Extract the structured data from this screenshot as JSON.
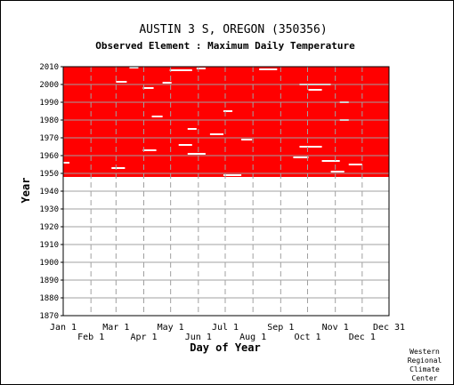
{
  "chart_data": {
    "type": "heatmap",
    "title": "AUSTIN 3 S, OREGON   (350356)",
    "subtitle": "Observed Element : Maximum Daily Temperature",
    "xlabel": "Day of Year",
    "ylabel": "Year",
    "x_tick_labels_top_row": [
      "Jan 1",
      "Mar 1",
      "May 1",
      "Jul 1",
      "Sep 1",
      "Nov 1",
      "Dec 31"
    ],
    "x_tick_labels_bottom_row": [
      "Feb 1",
      "Apr 1",
      "Jun 1",
      "Aug 1",
      "Oct 1",
      "Dec 1"
    ],
    "x_tick_days_top_row": [
      1,
      60,
      121,
      182,
      244,
      305,
      365
    ],
    "x_tick_days_bottom_row": [
      32,
      91,
      152,
      213,
      274,
      335
    ],
    "y_ticks": [
      1870,
      1880,
      1890,
      1900,
      1910,
      1920,
      1930,
      1940,
      1950,
      1960,
      1970,
      1980,
      1990,
      2000,
      2010
    ],
    "xlim": [
      1,
      365
    ],
    "ylim": [
      1870,
      2010
    ],
    "data_coverage": {
      "start_year": 1948,
      "end_year": 2010,
      "color": "#ff0000"
    },
    "missing_data_gaps": [
      {
        "year": 2009.5,
        "day_start": 75,
        "day_end": 85
      },
      {
        "year": 2008,
        "day_start": 120,
        "day_end": 145
      },
      {
        "year": 2009,
        "day_start": 150,
        "day_end": 160
      },
      {
        "year": 2008.5,
        "day_start": 220,
        "day_end": 240
      },
      {
        "year": 2001.5,
        "day_start": 60,
        "day_end": 72
      },
      {
        "year": 1998,
        "day_start": 90,
        "day_end": 102
      },
      {
        "year": 2001,
        "day_start": 112,
        "day_end": 122
      },
      {
        "year": 2000,
        "day_start": 265,
        "day_end": 300
      },
      {
        "year": 1997,
        "day_start": 275,
        "day_end": 290
      },
      {
        "year": 1990,
        "day_start": 310,
        "day_end": 320
      },
      {
        "year": 1985,
        "day_start": 180,
        "day_end": 190
      },
      {
        "year": 1982,
        "day_start": 100,
        "day_end": 112
      },
      {
        "year": 1980,
        "day_start": 310,
        "day_end": 320
      },
      {
        "year": 1975,
        "day_start": 140,
        "day_end": 150
      },
      {
        "year": 1972,
        "day_start": 165,
        "day_end": 180
      },
      {
        "year": 1969,
        "day_start": 200,
        "day_end": 212
      },
      {
        "year": 1966,
        "day_start": 130,
        "day_end": 145
      },
      {
        "year": 1965,
        "day_start": 265,
        "day_end": 290
      },
      {
        "year": 1963,
        "day_start": 90,
        "day_end": 105
      },
      {
        "year": 1961,
        "day_start": 140,
        "day_end": 160
      },
      {
        "year": 1959,
        "day_start": 258,
        "day_end": 275
      },
      {
        "year": 1957,
        "day_start": 290,
        "day_end": 310
      },
      {
        "year": 1956,
        "day_start": 1,
        "day_end": 8
      },
      {
        "year": 1955,
        "day_start": 320,
        "day_end": 335
      },
      {
        "year": 1953,
        "day_start": 55,
        "day_end": 70
      },
      {
        "year": 1951,
        "day_start": 300,
        "day_end": 315
      },
      {
        "year": 1949,
        "day_start": 180,
        "day_end": 200
      }
    ]
  },
  "footer": {
    "org_line1": "Western",
    "org_line2": "Regional",
    "org_line3": "Climate",
    "org_line4": "Center"
  },
  "colors": {
    "data": "#ff0000",
    "grid_horizontal": "#a0a0a0",
    "grid_vertical": "#a0a0a0",
    "axis": "#000000",
    "background": "#ffffff"
  }
}
